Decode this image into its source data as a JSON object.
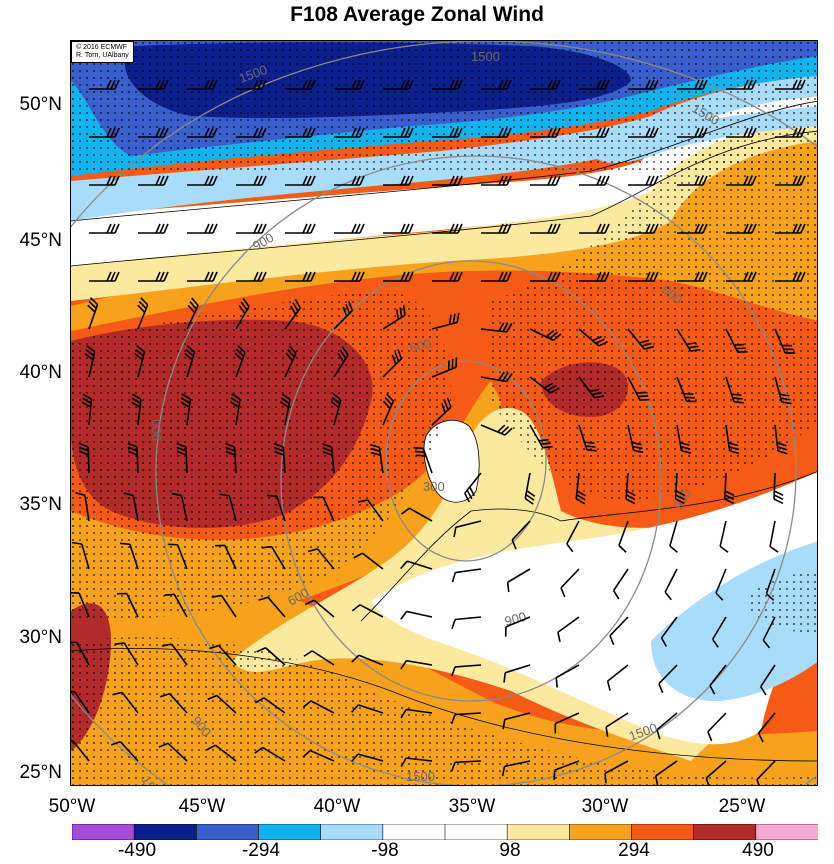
{
  "title": "F108 Average Zonal Wind",
  "credit": {
    "line1": "© 2016 ECMWF",
    "line2": "R. Torn, UAlbany"
  },
  "lat_labels": [
    "50°N",
    "45°N",
    "40°N",
    "35°N",
    "30°N",
    "25°N"
  ],
  "lon_labels": [
    "50°W",
    "45°W",
    "40°W",
    "35°W",
    "30°W",
    "25°W"
  ],
  "colorbar": {
    "colors": [
      "#a44cd8",
      "#0c1f8c",
      "#3a5fcd",
      "#12b4f0",
      "#a8dcfa",
      "#ffffff",
      "#ffffff",
      "#fce9a0",
      "#f6a21c",
      "#f55a16",
      "#b22a2a",
      "#f9a8cf"
    ],
    "labels": [
      "-490",
      "-294",
      "-98",
      "98",
      "294",
      "490"
    ]
  },
  "contour_labels": [
    "1500",
    "1500",
    "1500",
    "900",
    "900",
    "600",
    "900",
    "300",
    "900",
    "900",
    "600",
    "900",
    "1500",
    "1500",
    "1500"
  ],
  "colors": {
    "dark_blue": "#0c1f8c",
    "blue": "#3a5fcd",
    "cyan": "#12b4f0",
    "light_blue": "#a8dcfa",
    "yellow": "#fce9a0",
    "orange": "#f6a21c",
    "red_orange": "#f55a16",
    "dark_red": "#b22a2a",
    "contour": "#8a8a8a"
  }
}
